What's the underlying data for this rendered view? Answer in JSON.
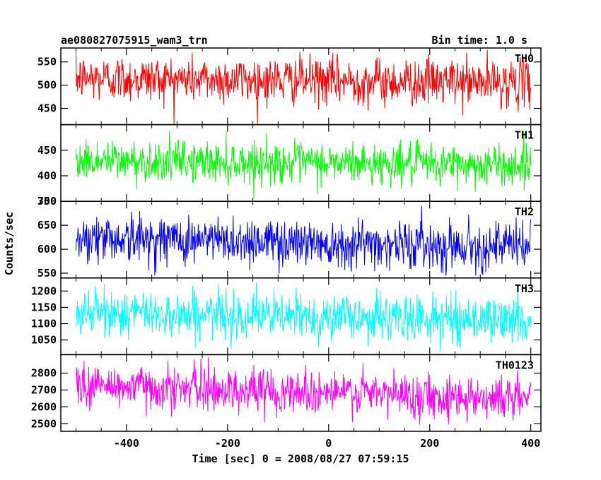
{
  "header": {
    "title": "ae080827075915_wam3_trn",
    "bin_time": "Bin time: 1.0 s"
  },
  "chart_data": {
    "type": "line",
    "xlabel": "Time [sec] 0 = 2008/08/27 07:59:15",
    "ylabel": "Counts/sec",
    "xlim": [
      -530,
      420
    ],
    "x_range": [
      -500,
      400
    ],
    "x_ticks": [
      -400,
      -200,
      0,
      200,
      400
    ],
    "panels": [
      {
        "name": "TH0",
        "color": "#ff0000",
        "ylim": [
          415,
          580
        ],
        "y_ticks": [
          450,
          500,
          550
        ],
        "mean_start": 515,
        "mean_end": 505,
        "spread": 25,
        "min": 410,
        "max": 580
      },
      {
        "name": "TH1",
        "color": "#00ff00",
        "ylim": [
          350,
          500
        ],
        "y_ticks": [
          350,
          400,
          450
        ],
        "mean_start": 430,
        "mean_end": 420,
        "spread": 20,
        "min": 355,
        "max": 495
      },
      {
        "name": "TH2",
        "color": "#0000ff",
        "ylim": [
          540,
          700
        ],
        "y_ticks": [
          550,
          600,
          650,
          700
        ],
        "mean_start": 625,
        "mean_end": 605,
        "spread": 25,
        "min": 545,
        "max": 700
      },
      {
        "name": "TH3",
        "color": "#00ffff",
        "ylim": [
          1005,
          1240
        ],
        "y_ticks": [
          1050,
          1100,
          1150,
          1200
        ],
        "mean_start": 1135,
        "mean_end": 1110,
        "spread": 35,
        "min": 1015,
        "max": 1240
      },
      {
        "name": "TH0123",
        "color": "#ff00ff",
        "ylim": [
          2455,
          2910
        ],
        "y_ticks": [
          2500,
          2600,
          2700,
          2800
        ],
        "mean_start": 2730,
        "mean_end": 2650,
        "spread": 65,
        "min": 2460,
        "max": 2900
      }
    ]
  }
}
